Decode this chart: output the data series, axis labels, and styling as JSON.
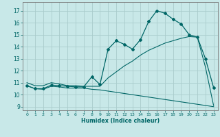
{
  "bg_color": "#c8e8e8",
  "grid_color": "#aacccc",
  "line_color": "#006666",
  "xlabel": "Humidex (Indice chaleur)",
  "xlim": [
    -0.5,
    23.5
  ],
  "ylim": [
    8.7,
    17.7
  ],
  "yticks": [
    9,
    10,
    11,
    12,
    13,
    14,
    15,
    16,
    17
  ],
  "xticks": [
    0,
    1,
    2,
    3,
    4,
    5,
    6,
    7,
    8,
    9,
    10,
    11,
    12,
    13,
    14,
    15,
    16,
    17,
    18,
    19,
    20,
    21,
    22,
    23
  ],
  "curve1_x": [
    0,
    1,
    2,
    3,
    4,
    5,
    6,
    7,
    8,
    9,
    10,
    11,
    12,
    13,
    14,
    15,
    16,
    17,
    18,
    19,
    20,
    21,
    22,
    23
  ],
  "curve1_y": [
    10.75,
    10.5,
    10.5,
    10.8,
    10.75,
    10.7,
    10.65,
    10.65,
    11.5,
    10.85,
    13.8,
    14.5,
    14.2,
    13.8,
    14.6,
    16.1,
    17.0,
    16.8,
    16.3,
    15.9,
    15.0,
    14.8,
    13.0,
    10.6
  ],
  "curve2_x": [
    0,
    1,
    2,
    3,
    4,
    5,
    6,
    7,
    8,
    9,
    10,
    11,
    12,
    13,
    14,
    15,
    16,
    17,
    18,
    19,
    20,
    21,
    22,
    23
  ],
  "curve2_y": [
    11.0,
    10.75,
    10.75,
    11.0,
    10.9,
    10.75,
    10.75,
    10.7,
    10.7,
    10.7,
    11.4,
    11.9,
    12.4,
    12.8,
    13.3,
    13.7,
    14.0,
    14.3,
    14.5,
    14.7,
    14.85,
    14.8,
    12.3,
    9.1
  ],
  "curve3_x": [
    0,
    1,
    2,
    3,
    4,
    5,
    6,
    7,
    8,
    9,
    10,
    11,
    12,
    13,
    14,
    15,
    16,
    17,
    18,
    19,
    20,
    21,
    22,
    23
  ],
  "curve3_y": [
    10.75,
    10.5,
    10.45,
    10.7,
    10.65,
    10.55,
    10.55,
    10.55,
    10.45,
    10.4,
    10.3,
    10.2,
    10.1,
    10.0,
    9.9,
    9.8,
    9.7,
    9.6,
    9.5,
    9.4,
    9.3,
    9.2,
    9.1,
    9.0
  ]
}
